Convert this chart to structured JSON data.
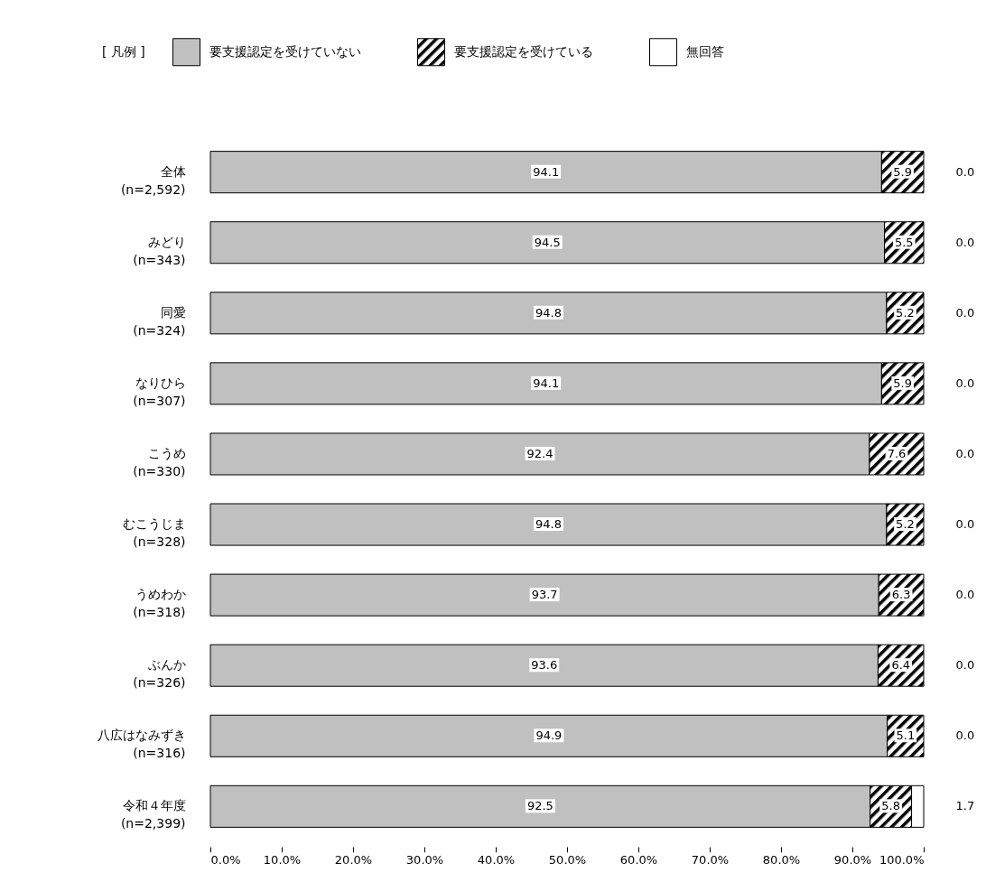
{
  "chart_data": {
    "type": "bar",
    "orientation": "horizontal",
    "stacked": true,
    "legend": "top",
    "legend_title": "[ 凡例 ]",
    "categories": [
      "全体\n(n=2,592)",
      "みどり\n(n=343)",
      "同愛\n(n=324)",
      "なりひら\n(n=307)",
      "こうめ\n(n=330)",
      "むこうじま\n(n=328)",
      "うめわか\n(n=318)",
      "ぶんか\n(n=326)",
      "八広はなみずき\n(n=316)",
      "令和４年度\n(n=2,399)"
    ],
    "series": [
      {
        "name": "要支援認定を受けていない",
        "color": "#c0c0c0",
        "values": [
          94.1,
          94.5,
          94.8,
          94.1,
          92.4,
          94.8,
          93.7,
          93.6,
          94.9,
          92.5
        ],
        "value_labels": [
          "94.1",
          "94.5",
          "94.8",
          "94.1",
          "92.4",
          "94.8",
          "93.7",
          "93.6",
          "94.9",
          "92.5"
        ]
      },
      {
        "name": "要支援認定を受けている",
        "color": "#000000",
        "values": [
          5.9,
          5.5,
          5.2,
          5.9,
          7.6,
          5.2,
          6.3,
          6.4,
          5.1,
          5.8
        ],
        "value_labels": [
          "5.9",
          "5.5",
          "5.2",
          "5.9",
          "7.6",
          "5.2",
          "6.3",
          "6.4",
          "5.1",
          "5.8"
        ]
      },
      {
        "name": "無回答",
        "color": "#ffffff",
        "values": [
          0.0,
          0.0,
          0.0,
          0.0,
          0.0,
          0.0,
          0.0,
          0.0,
          0.0,
          1.7
        ],
        "value_labels": [
          "0.0",
          "0.0",
          "0.0",
          "0.0",
          "0.0",
          "0.0",
          "0.0",
          "0.0",
          "0.0",
          "1.7"
        ]
      }
    ],
    "xlim": [
      0,
      100
    ],
    "xticks": [
      {
        "value": 0,
        "label": "0.0%"
      },
      {
        "value": 10,
        "label": "10.0%"
      },
      {
        "value": 20,
        "label": "20.0%"
      },
      {
        "value": 30,
        "label": "30.0%"
      },
      {
        "value": 40,
        "label": "40.0%"
      },
      {
        "value": 50,
        "label": "50.0%"
      },
      {
        "value": 60,
        "label": "60.0%"
      },
      {
        "value": 70,
        "label": "70.0%"
      },
      {
        "value": 80,
        "label": "80.0%"
      },
      {
        "value": 90,
        "label": "90.0%"
      },
      {
        "value": 100,
        "label": "100.0%"
      }
    ]
  }
}
